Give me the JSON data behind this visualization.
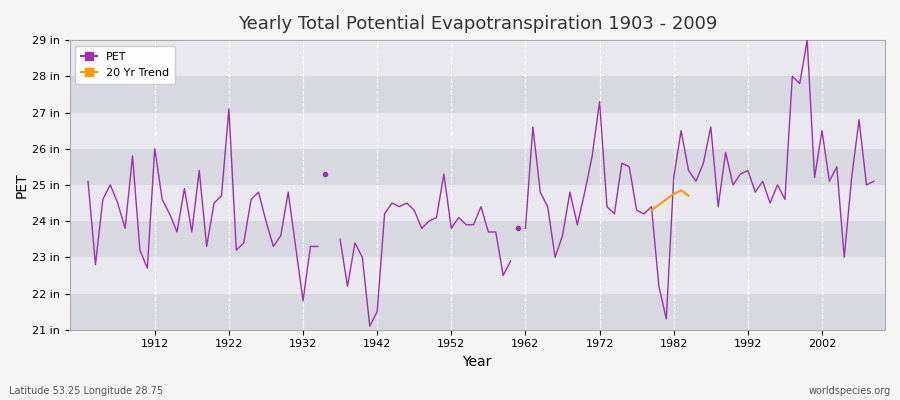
{
  "title": "Yearly Total Potential Evapotranspiration 1903 - 2009",
  "xlabel": "Year",
  "ylabel": "PET",
  "bottom_left": "Latitude 53.25 Longitude 28.75",
  "bottom_right": "worldspecies.org",
  "background_color": "#f5f5f5",
  "plot_bg_color": "#e8e8ee",
  "band_color_light": "#e8e8ee",
  "band_color_dark": "#d8d8e0",
  "line_color": "#9b30b0",
  "trend_color": "#ff9900",
  "ylim": [
    21,
    29
  ],
  "yticks": [
    21,
    22,
    23,
    24,
    25,
    26,
    27,
    28,
    29
  ],
  "ytick_labels": [
    "21 in",
    "22 in",
    "23 in",
    "24 in",
    "25 in",
    "26 in",
    "27 in",
    "28 in",
    "29 in"
  ],
  "xlim": [
    1900.5,
    2010.5
  ],
  "xticks": [
    1912,
    1922,
    1932,
    1942,
    1952,
    1962,
    1972,
    1982,
    1992,
    2002
  ],
  "years": [
    1903,
    1904,
    1905,
    1906,
    1907,
    1908,
    1909,
    1910,
    1911,
    1912,
    1913,
    1914,
    1915,
    1916,
    1917,
    1918,
    1919,
    1920,
    1921,
    1922,
    1923,
    1924,
    1925,
    1926,
    1927,
    1928,
    1929,
    1930,
    1931,
    1932,
    1933,
    1934,
    null,
    null,
    1937,
    1938,
    1939,
    1940,
    1941,
    1942,
    1943,
    1944,
    1945,
    1946,
    1947,
    1948,
    1949,
    1950,
    1951,
    1952,
    1953,
    1954,
    1955,
    1956,
    1957,
    1958,
    1959,
    1960,
    null,
    1962,
    1963,
    1964,
    1965,
    1966,
    1967,
    1968,
    1969,
    1970,
    1971,
    1972,
    1973,
    1974,
    1975,
    1976,
    1977,
    1978,
    1979,
    1980,
    1981,
    1982,
    1983,
    1984,
    1985,
    1986,
    1987,
    1988,
    1989,
    1990,
    1991,
    1992,
    1993,
    1994,
    1995,
    1996,
    1997,
    1998,
    1999,
    2000,
    2001,
    2002,
    2003,
    2004,
    2005,
    2006,
    2007,
    2008,
    2009
  ],
  "pet": [
    25.1,
    22.8,
    24.6,
    25.0,
    24.5,
    23.8,
    25.8,
    23.2,
    22.7,
    26.0,
    24.6,
    24.2,
    23.7,
    24.9,
    23.7,
    25.4,
    23.3,
    24.5,
    24.7,
    27.1,
    23.2,
    23.4,
    24.6,
    24.8,
    24.0,
    23.3,
    23.6,
    24.8,
    23.3,
    21.8,
    23.3,
    23.3,
    null,
    null,
    23.5,
    22.2,
    23.4,
    23.0,
    21.1,
    21.5,
    24.2,
    24.5,
    24.4,
    24.5,
    24.3,
    23.8,
    24.0,
    24.1,
    25.3,
    23.8,
    24.1,
    23.9,
    23.9,
    24.4,
    23.7,
    23.7,
    22.5,
    22.9,
    null,
    23.8,
    26.6,
    24.8,
    24.4,
    23.0,
    23.6,
    24.8,
    23.9,
    24.8,
    25.8,
    27.3,
    24.4,
    24.2,
    25.6,
    25.5,
    24.3,
    24.2,
    24.4,
    22.2,
    21.3,
    25.2,
    26.5,
    25.4,
    25.1,
    25.6,
    26.6,
    24.4,
    25.9,
    25.0,
    25.3,
    25.4,
    24.8,
    25.1,
    24.5,
    25.0,
    24.6,
    28.0,
    27.8,
    29.0,
    25.2,
    26.5,
    25.1,
    25.5,
    23.0,
    25.2,
    26.8,
    25.0,
    25.1
  ],
  "isolated_points": [
    {
      "year": 1935,
      "value": 25.3
    },
    {
      "year": 1961,
      "value": 23.8
    }
  ],
  "trend_years": [
    1979,
    1980,
    1981,
    1982,
    1983,
    1984
  ],
  "trend_values": [
    24.3,
    24.45,
    24.6,
    24.75,
    24.85,
    24.7
  ]
}
